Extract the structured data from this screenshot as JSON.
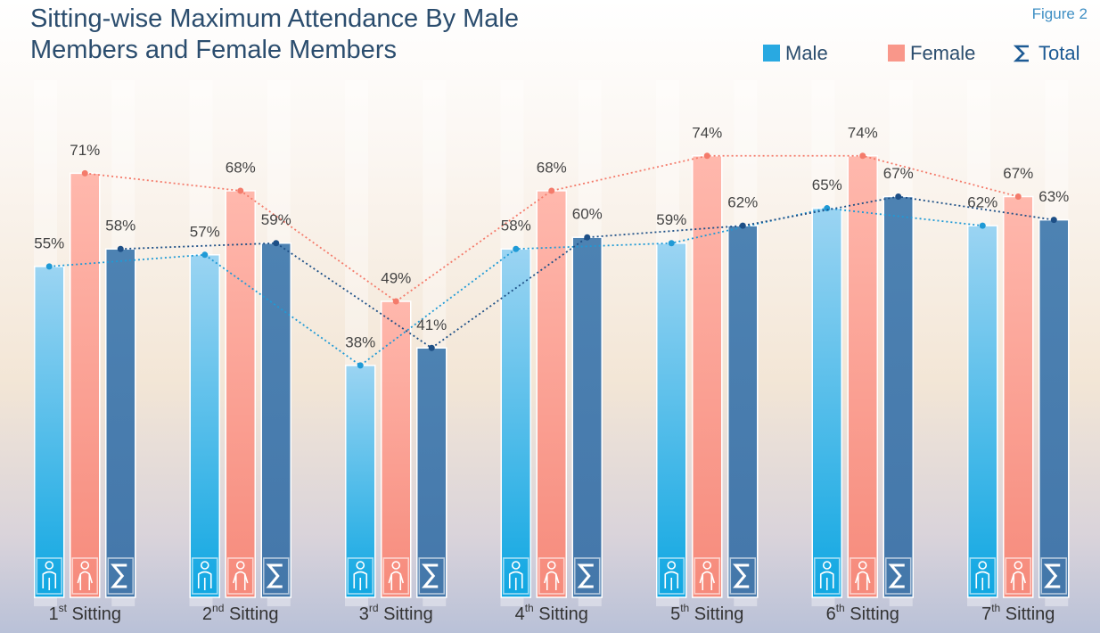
{
  "chart_data": {
    "type": "bar",
    "title": "Sitting-wise Maximum Attendance By Male Members and Female Members",
    "figure_label": "Figure 2",
    "categories": [
      "1st Sitting",
      "2nd Sitting",
      "3rd Sitting",
      "4th Sitting",
      "5th Sitting",
      "6th Sitting",
      "7th Sitting"
    ],
    "series": [
      {
        "name": "Male",
        "color": "#29a9e1",
        "values": [
          55,
          57,
          38,
          58,
          59,
          65,
          62
        ],
        "value_labels": [
          "55%",
          "57%",
          "38%",
          "58%",
          "59%",
          "65%",
          "62%"
        ]
      },
      {
        "name": "Female",
        "color": "#f9978a",
        "values": [
          71,
          68,
          49,
          68,
          74,
          74,
          67
        ],
        "value_labels": [
          "71%",
          "68%",
          "49%",
          "68%",
          "74%",
          "74%",
          "67%"
        ]
      },
      {
        "name": "Total",
        "color": "#4a7fb1",
        "values": [
          58,
          59,
          41,
          60,
          62,
          67,
          63
        ],
        "value_labels": [
          "58%",
          "59%",
          "41%",
          "60%",
          "62%",
          "67%",
          "63%"
        ]
      }
    ],
    "ylim": [
      0,
      100
    ]
  }
}
